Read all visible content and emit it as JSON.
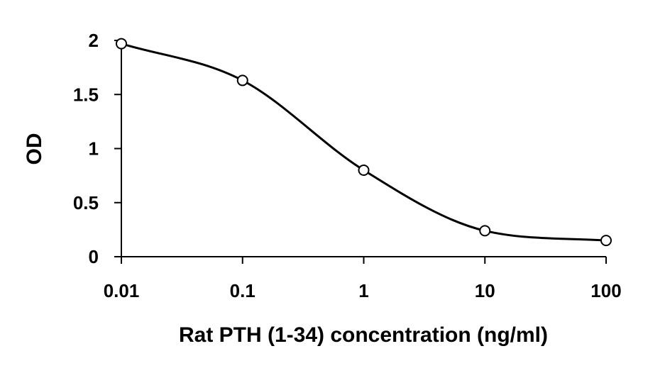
{
  "chart_data": {
    "type": "line",
    "xlabel": "Rat PTH (1-34) concentration (ng/ml)",
    "ylabel": "OD",
    "x_scale": "log",
    "xlim": [
      0.01,
      100
    ],
    "ylim": [
      0,
      2
    ],
    "x_ticks": [
      "0.01",
      "0.1",
      "1",
      "10",
      "100"
    ],
    "y_ticks": [
      "0",
      "0.5",
      "1",
      "1.5",
      "2"
    ],
    "grid": false,
    "legend": "none",
    "series": [
      {
        "x": [
          0.01,
          0.1,
          1,
          10,
          100
        ],
        "y": [
          1.97,
          1.63,
          0.8,
          0.24,
          0.15
        ],
        "line_color": "#000000",
        "marker": "open-circle",
        "smooth": true
      }
    ]
  }
}
